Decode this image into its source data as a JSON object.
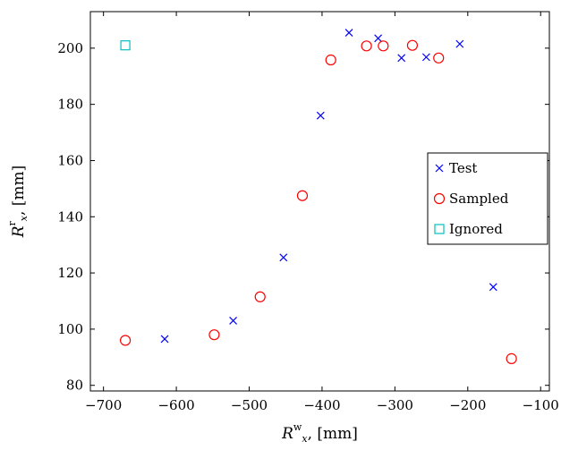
{
  "chart_data": {
    "type": "scatter",
    "xlabel": {
      "symbol": "R",
      "sub": "x",
      "sup": "w",
      "unit": ", [mm]"
    },
    "ylabel": {
      "symbol": "R",
      "sub": "x",
      "sup": "r",
      "unit": ", [mm]"
    },
    "xlim": [
      -718,
      -88
    ],
    "ylim": [
      78,
      213
    ],
    "xticks": [
      -700,
      -600,
      -500,
      -400,
      -300,
      -200,
      -100
    ],
    "yticks": [
      80,
      100,
      120,
      140,
      160,
      180,
      200
    ],
    "xtick_labels": [
      "−700",
      "−600",
      "−500",
      "−400",
      "−300",
      "−200",
      "−100"
    ],
    "ytick_labels": [
      "80",
      "100",
      "120",
      "140",
      "160",
      "180",
      "200"
    ],
    "grid": false,
    "legend_position": "right",
    "series": [
      {
        "name": "Test",
        "marker": "x",
        "color": "#0000ff",
        "points": [
          [
            -616,
            96.5
          ],
          [
            -522,
            103
          ],
          [
            -453,
            125.5
          ],
          [
            -402,
            176
          ],
          [
            -363,
            205.5
          ],
          [
            -323,
            203.5
          ],
          [
            -291,
            196.5
          ],
          [
            -257,
            196.8
          ],
          [
            -211,
            201.5
          ],
          [
            -165,
            115
          ]
        ]
      },
      {
        "name": "Sampled",
        "marker": "circle",
        "color": "#ff0000",
        "points": [
          [
            -670,
            96
          ],
          [
            -548,
            98
          ],
          [
            -485,
            111.5
          ],
          [
            -427,
            147.5
          ],
          [
            -388,
            195.8
          ],
          [
            -339,
            200.8
          ],
          [
            -316,
            200.8
          ],
          [
            -276,
            201
          ],
          [
            -240,
            196.5
          ],
          [
            -140,
            89.5
          ]
        ]
      },
      {
        "name": "Ignored",
        "marker": "square",
        "color": "#00c0c0",
        "points": [
          [
            -670,
            201
          ]
        ]
      }
    ]
  }
}
